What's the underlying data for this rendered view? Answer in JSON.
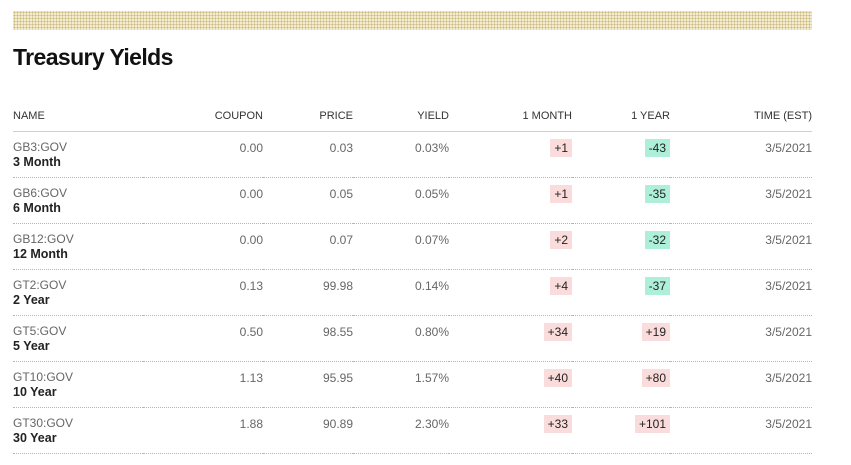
{
  "colors": {
    "positive_bg": "#fbdcdc",
    "negative_bg": "#aeefd9",
    "band": "#f3ecd0"
  },
  "page": {
    "title": "Treasury Yields"
  },
  "table": {
    "headers": {
      "name": "NAME",
      "coupon": "COUPON",
      "price": "PRICE",
      "yield": "YIELD",
      "one_month": "1 MONTH",
      "one_year": "1 YEAR",
      "time": "TIME (EST)"
    },
    "rows": [
      {
        "ticker": "GB3:GOV",
        "desc": "3 Month",
        "coupon": "0.00",
        "price": "0.03",
        "yield": "0.03%",
        "one_month": "+1",
        "one_month_dir": "pos",
        "one_year": "-43",
        "one_year_dir": "neg",
        "time": "3/5/2021"
      },
      {
        "ticker": "GB6:GOV",
        "desc": "6 Month",
        "coupon": "0.00",
        "price": "0.05",
        "yield": "0.05%",
        "one_month": "+1",
        "one_month_dir": "pos",
        "one_year": "-35",
        "one_year_dir": "neg",
        "time": "3/5/2021"
      },
      {
        "ticker": "GB12:GOV",
        "desc": "12 Month",
        "coupon": "0.00",
        "price": "0.07",
        "yield": "0.07%",
        "one_month": "+2",
        "one_month_dir": "pos",
        "one_year": "-32",
        "one_year_dir": "neg",
        "time": "3/5/2021"
      },
      {
        "ticker": "GT2:GOV",
        "desc": "2 Year",
        "coupon": "0.13",
        "price": "99.98",
        "yield": "0.14%",
        "one_month": "+4",
        "one_month_dir": "pos",
        "one_year": "-37",
        "one_year_dir": "neg",
        "time": "3/5/2021"
      },
      {
        "ticker": "GT5:GOV",
        "desc": "5 Year",
        "coupon": "0.50",
        "price": "98.55",
        "yield": "0.80%",
        "one_month": "+34",
        "one_month_dir": "pos",
        "one_year": "+19",
        "one_year_dir": "pos",
        "time": "3/5/2021"
      },
      {
        "ticker": "GT10:GOV",
        "desc": "10 Year",
        "coupon": "1.13",
        "price": "95.95",
        "yield": "1.57%",
        "one_month": "+40",
        "one_month_dir": "pos",
        "one_year": "+80",
        "one_year_dir": "pos",
        "time": "3/5/2021"
      },
      {
        "ticker": "GT30:GOV",
        "desc": "30 Year",
        "coupon": "1.88",
        "price": "90.89",
        "yield": "2.30%",
        "one_month": "+33",
        "one_month_dir": "pos",
        "one_year": "+101",
        "one_year_dir": "pos",
        "time": "3/5/2021"
      }
    ]
  }
}
